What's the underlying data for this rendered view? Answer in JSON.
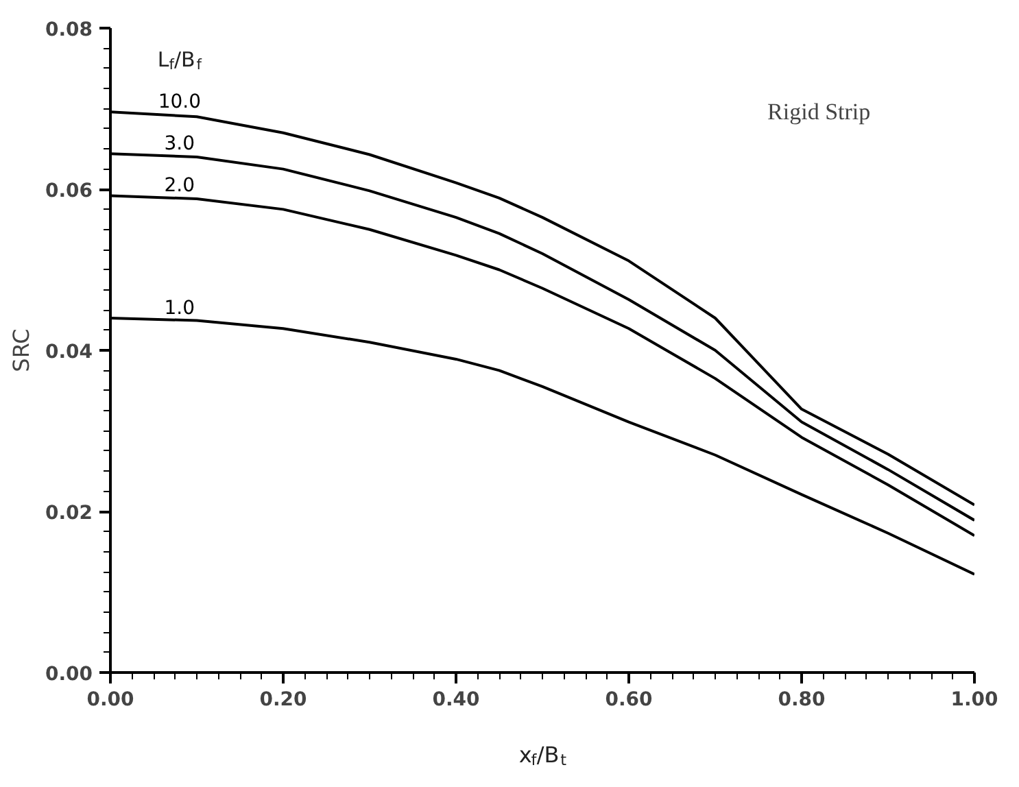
{
  "chart_data": {
    "type": "line",
    "xlabel": "x$_{f}$/B$_{t}$",
    "ylabel": "SRC",
    "legend_title": "L$_{f}$/B$_{f}$",
    "annotations": [
      "Rigid Strip"
    ],
    "x": [
      0,
      0.1,
      0.2,
      0.3,
      0.4,
      0.45,
      0.5,
      0.6,
      0.7,
      0.8,
      0.9,
      1.0
    ],
    "series": [
      {
        "name": "10.0",
        "color": "#000000",
        "values": [
          0.0696,
          0.069,
          0.067,
          0.0643,
          0.0608,
          0.0589,
          0.0565,
          0.0511,
          0.044,
          0.0327,
          0.0271,
          0.0208
        ]
      },
      {
        "name": "3.0",
        "color": "#000000",
        "values": [
          0.0644,
          0.064,
          0.0625,
          0.0598,
          0.0565,
          0.0545,
          0.052,
          0.0463,
          0.04,
          0.0311,
          0.0252,
          0.0189
        ]
      },
      {
        "name": "2.0",
        "color": "#000000",
        "values": [
          0.0592,
          0.0588,
          0.0575,
          0.055,
          0.0518,
          0.05,
          0.0477,
          0.0427,
          0.0365,
          0.0292,
          0.0233,
          0.017
        ]
      },
      {
        "name": "1.0",
        "color": "#000000",
        "values": [
          0.044,
          0.0437,
          0.0427,
          0.041,
          0.0389,
          0.0375,
          0.0355,
          0.0311,
          0.027,
          0.0221,
          0.0173,
          0.0122
        ]
      }
    ],
    "xlim": [
      0,
      1.0
    ],
    "ylim": [
      0,
      0.08
    ],
    "xticks": [
      {
        "value": 0,
        "label": "0.00"
      },
      {
        "value": 0.2,
        "label": "0.20"
      },
      {
        "value": 0.4,
        "label": "0.40"
      },
      {
        "value": 0.6,
        "label": "0.60"
      },
      {
        "value": 0.8,
        "label": "0.80"
      },
      {
        "value": 1.0,
        "label": "1.00"
      }
    ],
    "yticks": [
      {
        "value": 0,
        "label": "0.00"
      },
      {
        "value": 0.02,
        "label": "0.02"
      },
      {
        "value": 0.04,
        "label": "0.04"
      },
      {
        "value": 0.06,
        "label": "0.06"
      },
      {
        "value": 0.08,
        "label": "0.08"
      }
    ],
    "grid": false,
    "marker": "none",
    "line_style": "solid"
  }
}
